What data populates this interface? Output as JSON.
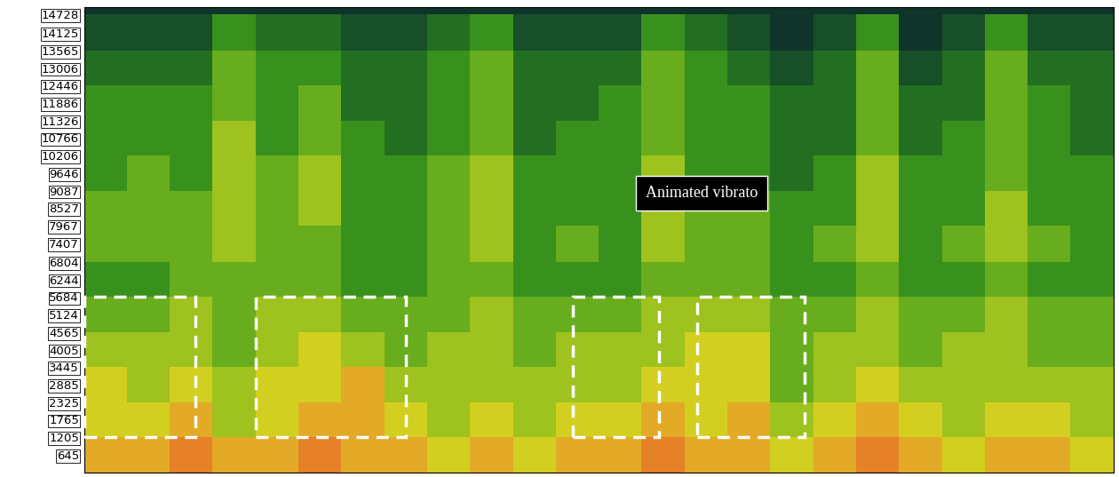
{
  "chart_data": {
    "type": "spectrogram",
    "annotation": "Animated vibrato",
    "xlim": [
      0,
      24
    ],
    "ylim": [
      85,
      14950
    ],
    "yticks": [
      645,
      1205,
      1765,
      2325,
      2885,
      3445,
      4005,
      4565,
      5124,
      5684,
      6244,
      6804,
      7407,
      7967,
      8527,
      9087,
      9646,
      10206,
      10766,
      11326,
      11886,
      12446,
      13006,
      13565,
      14125,
      14728
    ],
    "tick_labels": "y",
    "freq_bins": [
      85,
      1205,
      2325,
      3445,
      4565,
      5684,
      6804,
      7967,
      9087,
      10206,
      11326,
      12446,
      13565,
      14728,
      14950
    ],
    "intensity_range": [
      0,
      10
    ],
    "cells": [
      [
        8,
        8,
        9,
        8,
        8,
        9,
        8,
        8,
        7,
        8,
        7,
        8,
        8,
        9,
        8,
        8,
        7,
        8,
        9,
        8,
        7,
        8,
        8,
        7
      ],
      [
        7,
        7,
        8,
        6,
        7,
        8,
        8,
        7,
        6,
        7,
        6,
        7,
        7,
        8,
        7,
        8,
        6,
        7,
        8,
        7,
        6,
        7,
        7,
        6
      ],
      [
        7,
        6,
        7,
        6,
        7,
        7,
        8,
        6,
        6,
        6,
        6,
        6,
        6,
        7,
        7,
        7,
        5,
        6,
        7,
        6,
        6,
        6,
        6,
        6
      ],
      [
        6,
        6,
        6,
        5,
        6,
        7,
        6,
        5,
        6,
        6,
        5,
        6,
        6,
        6,
        7,
        7,
        5,
        6,
        6,
        5,
        6,
        6,
        5,
        5
      ],
      [
        5,
        5,
        6,
        5,
        6,
        6,
        5,
        5,
        5,
        6,
        5,
        5,
        5,
        6,
        6,
        6,
        5,
        5,
        6,
        5,
        5,
        6,
        5,
        5
      ],
      [
        4,
        4,
        5,
        5,
        5,
        5,
        4,
        4,
        5,
        5,
        4,
        4,
        4,
        5,
        5,
        5,
        4,
        4,
        5,
        4,
        4,
        5,
        4,
        4
      ],
      [
        5,
        5,
        5,
        6,
        5,
        5,
        4,
        4,
        5,
        6,
        4,
        5,
        4,
        6,
        5,
        5,
        4,
        5,
        6,
        4,
        5,
        6,
        5,
        4
      ],
      [
        5,
        5,
        5,
        6,
        5,
        6,
        4,
        4,
        5,
        6,
        4,
        4,
        4,
        6,
        5,
        5,
        4,
        4,
        6,
        4,
        4,
        6,
        4,
        4
      ],
      [
        4,
        5,
        4,
        6,
        5,
        6,
        4,
        4,
        5,
        6,
        4,
        4,
        4,
        6,
        4,
        4,
        3,
        4,
        6,
        4,
        4,
        5,
        4,
        4
      ],
      [
        4,
        4,
        4,
        6,
        4,
        5,
        4,
        3,
        4,
        5,
        3,
        4,
        4,
        5,
        4,
        4,
        3,
        3,
        5,
        3,
        4,
        5,
        4,
        3
      ],
      [
        4,
        4,
        4,
        5,
        4,
        5,
        3,
        3,
        4,
        5,
        3,
        3,
        4,
        5,
        4,
        4,
        3,
        3,
        5,
        3,
        3,
        5,
        4,
        3
      ],
      [
        3,
        3,
        3,
        5,
        4,
        4,
        3,
        3,
        4,
        5,
        3,
        3,
        3,
        5,
        4,
        3,
        2,
        3,
        5,
        2,
        3,
        5,
        3,
        3
      ],
      [
        2,
        2,
        2,
        4,
        3,
        3,
        2,
        2,
        3,
        4,
        2,
        2,
        2,
        4,
        3,
        2,
        1,
        2,
        4,
        1,
        2,
        4,
        2,
        2
      ],
      [
        1,
        1,
        1,
        1,
        1,
        1,
        1,
        1,
        1,
        1,
        1,
        1,
        1,
        1,
        1,
        1,
        1,
        1,
        1,
        1,
        1,
        1,
        1,
        1
      ]
    ],
    "regions": [
      {
        "x": [
          0,
          2.6
        ],
        "y": [
          1205,
          5684
        ]
      },
      {
        "x": [
          4.0,
          7.5
        ],
        "y": [
          1205,
          5684
        ]
      },
      {
        "x": [
          11.4,
          13.4
        ],
        "y": [
          1205,
          5684
        ]
      },
      {
        "x": [
          14.3,
          16.8
        ],
        "y": [
          1205,
          5684
        ]
      }
    ]
  }
}
